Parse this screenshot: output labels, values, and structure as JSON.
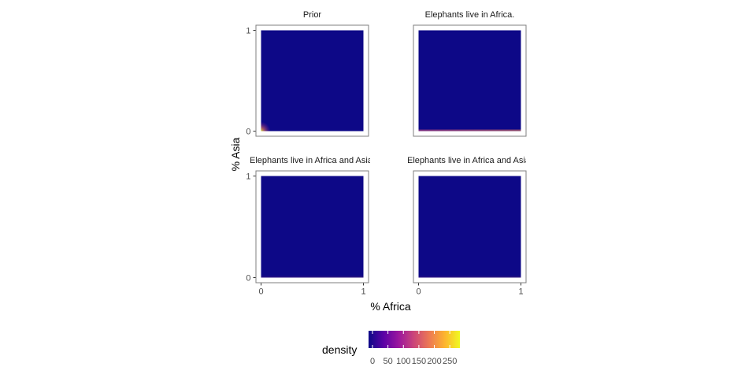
{
  "chart_data": {
    "type": "heatmap",
    "xlabel": "% Africa",
    "ylabel": "% Asia",
    "xlim": [
      0,
      1
    ],
    "ylim": [
      0,
      1
    ],
    "x_ticks": [
      "0",
      "1"
    ],
    "y_ticks": [
      "0",
      "1"
    ],
    "grid": false,
    "panels": [
      {
        "title": "Prior",
        "corner_peak": 0.9,
        "bottom_edge": 0.0
      },
      {
        "title": "Elephants live in Africa.",
        "corner_peak": 0.0,
        "bottom_edge": 0.55
      },
      {
        "title": "Elephants live in Africa and Asia.",
        "corner_peak": 0.0,
        "bottom_edge": 0.12
      },
      {
        "title": "Elephants live in Africa and Asia.",
        "corner_peak": 0.0,
        "bottom_edge": 0.12
      }
    ],
    "legend": {
      "title": "density",
      "position": "bottom",
      "ticks": [
        0,
        50,
        100,
        150,
        200,
        250
      ],
      "range": [
        0,
        270
      ],
      "colors": [
        "#0d0887",
        "#5c01a6",
        "#9c179e",
        "#cc4778",
        "#ed7953",
        "#fdb42f",
        "#f0f921"
      ]
    }
  }
}
